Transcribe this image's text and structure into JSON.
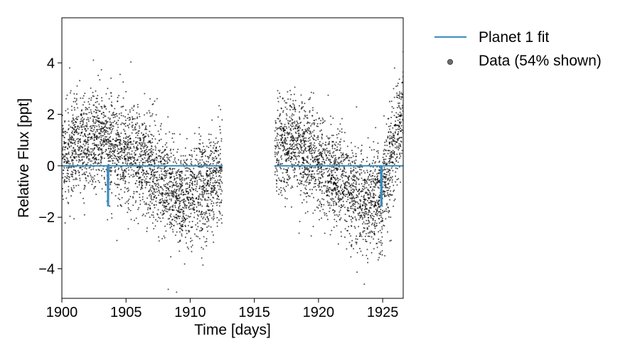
{
  "chart_data": {
    "type": "scatter",
    "xlabel": "Time [days]",
    "ylabel": "Relative Flux [ppt]",
    "xlim": [
      1900,
      1926.6
    ],
    "ylim": [
      -5.15,
      5.75
    ],
    "x_ticks": [
      1900,
      1905,
      1910,
      1915,
      1920,
      1925
    ],
    "y_ticks": [
      -4,
      -2,
      0,
      2,
      4
    ],
    "grid": false,
    "legend_position": "outside-right",
    "colors": {
      "fit": "#3b8dbf",
      "data": "#000000"
    },
    "series": [
      {
        "name": "Planet 1 fit",
        "kind": "line",
        "baseline": 0,
        "transits": [
          {
            "time": 1903.6,
            "depth": -1.55
          },
          {
            "time": 1924.9,
            "depth": -1.55
          }
        ],
        "segments": [
          [
            1900,
            1912.5
          ],
          [
            1916.6,
            1926.6
          ]
        ]
      },
      {
        "name": "Data (54% shown)",
        "kind": "scatter",
        "segments": [
          [
            1900,
            1912.5
          ],
          [
            1916.6,
            1926.6
          ]
        ],
        "trend": [
          [
            1900,
            0.3
          ],
          [
            1901.5,
            0.9
          ],
          [
            1903,
            1.15
          ],
          [
            1904.5,
            0.7
          ],
          [
            1906,
            0.3
          ],
          [
            1908,
            -0.7
          ],
          [
            1909.5,
            -1.3
          ],
          [
            1911,
            -0.8
          ],
          [
            1912.5,
            -0.2
          ],
          [
            1916.6,
            0.5
          ],
          [
            1918,
            0.8
          ],
          [
            1919.5,
            0.3
          ],
          [
            1921,
            -0.3
          ],
          [
            1922.5,
            -0.9
          ],
          [
            1923.8,
            -1.6
          ],
          [
            1924.8,
            -1.2
          ],
          [
            1925.8,
            0.4
          ],
          [
            1926.6,
            2.3
          ]
        ],
        "scatter_sd": 0.95
      }
    ]
  }
}
